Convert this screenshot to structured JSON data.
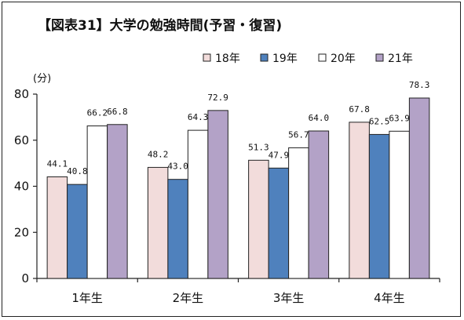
{
  "chart_data": {
    "type": "bar",
    "title": "【図表31】大学の勉強時間(予習・復習)",
    "unit_label": "(分)",
    "categories": [
      "1年生",
      "2年生",
      "3年生",
      "4年生"
    ],
    "series": [
      {
        "name": "18年",
        "color": "#f2dcdb",
        "values": [
          44.1,
          48.2,
          51.3,
          67.8
        ],
        "labels": [
          "44.1",
          "48.2",
          "51.3",
          "67.8"
        ]
      },
      {
        "name": "19年",
        "color": "#4f81bd",
        "values": [
          40.8,
          43.0,
          47.9,
          62.5
        ],
        "labels": [
          "40.8",
          "43.0",
          "47.9",
          "62.5"
        ]
      },
      {
        "name": "20年",
        "color": "#ffffff",
        "values": [
          66.2,
          64.3,
          56.7,
          63.9
        ],
        "labels": [
          "66.2",
          "64.3",
          "56.7",
          "63.9"
        ]
      },
      {
        "name": "21年",
        "color": "#b3a2c7",
        "values": [
          66.8,
          72.9,
          64.0,
          78.3
        ],
        "labels": [
          "66.8",
          "72.9",
          "64.0",
          "78.3"
        ]
      }
    ],
    "yticks": [
      "0",
      "20",
      "40",
      "60",
      "80"
    ],
    "ylim": [
      0,
      80
    ],
    "grid": false,
    "legend_position": "top-right"
  }
}
